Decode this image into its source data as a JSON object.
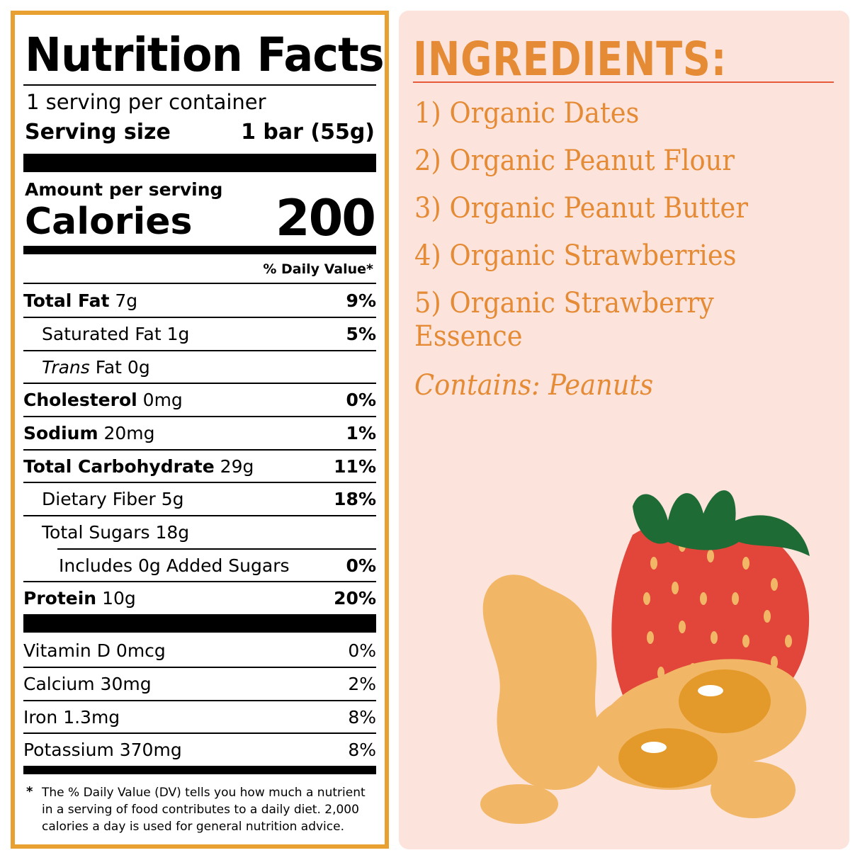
{
  "nutrition": {
    "title": "Nutrition Facts",
    "servings": "1 serving per container",
    "serving_size_label": "Serving size",
    "serving_size_value": "1 bar (55g)",
    "amount_per_serving": "Amount per serving",
    "calories_label": "Calories",
    "calories_value": "200",
    "dv_header": "% Daily Value*",
    "rows": [
      {
        "name": "Total Fat",
        "amount": "7g",
        "dv": "9%"
      },
      {
        "name": "Saturated Fat",
        "amount": "1g",
        "dv": "5%"
      },
      {
        "name": "Trans",
        "name_suffix": "Fat 0g",
        "amount": "",
        "dv": ""
      },
      {
        "name": "Cholesterol",
        "amount": "0mg",
        "dv": "0%"
      },
      {
        "name": "Sodium",
        "amount": "20mg",
        "dv": "1%"
      },
      {
        "name": "Total Carbohydrate",
        "amount": "29g",
        "dv": "11%"
      },
      {
        "name": "Dietary Fiber",
        "amount": "5g",
        "dv": "18%"
      },
      {
        "name": "Total Sugars",
        "amount": "18g",
        "dv": ""
      },
      {
        "name": "Includes 0g Added Sugars",
        "amount": "",
        "dv": "0%"
      },
      {
        "name": "Protein",
        "amount": "10g",
        "dv": "20%"
      }
    ],
    "vitamins": [
      {
        "name": "Vitamin D 0mcg",
        "dv": "0%"
      },
      {
        "name": "Calcium 30mg",
        "dv": "2%"
      },
      {
        "name": "Iron 1.3mg",
        "dv": "8%"
      },
      {
        "name": "Potassium 370mg",
        "dv": "8%"
      }
    ],
    "footnote_star": "*",
    "footnote": "The % Daily Value (DV) tells you how much a nutrient in a serving of food contributes to a daily diet. 2,000 calories a day is used for general nutrition advice."
  },
  "ingredients": {
    "title": "INGREDIENTS:",
    "items": [
      "1) Organic Dates",
      "2) Organic Peanut Flour",
      "3) Organic Peanut Butter",
      "4) Organic Strawberries",
      "5) Organic Strawberry",
      "Essence"
    ],
    "contains": "Contains: Peanuts"
  },
  "colors": {
    "border": "#E8A030",
    "panel": "#FCE4DC",
    "accent": "#E58A35",
    "underline": "#E55A3A",
    "strawberry": "#E2463A",
    "leaf": "#1F6B35",
    "peanut": "#F2B766"
  }
}
